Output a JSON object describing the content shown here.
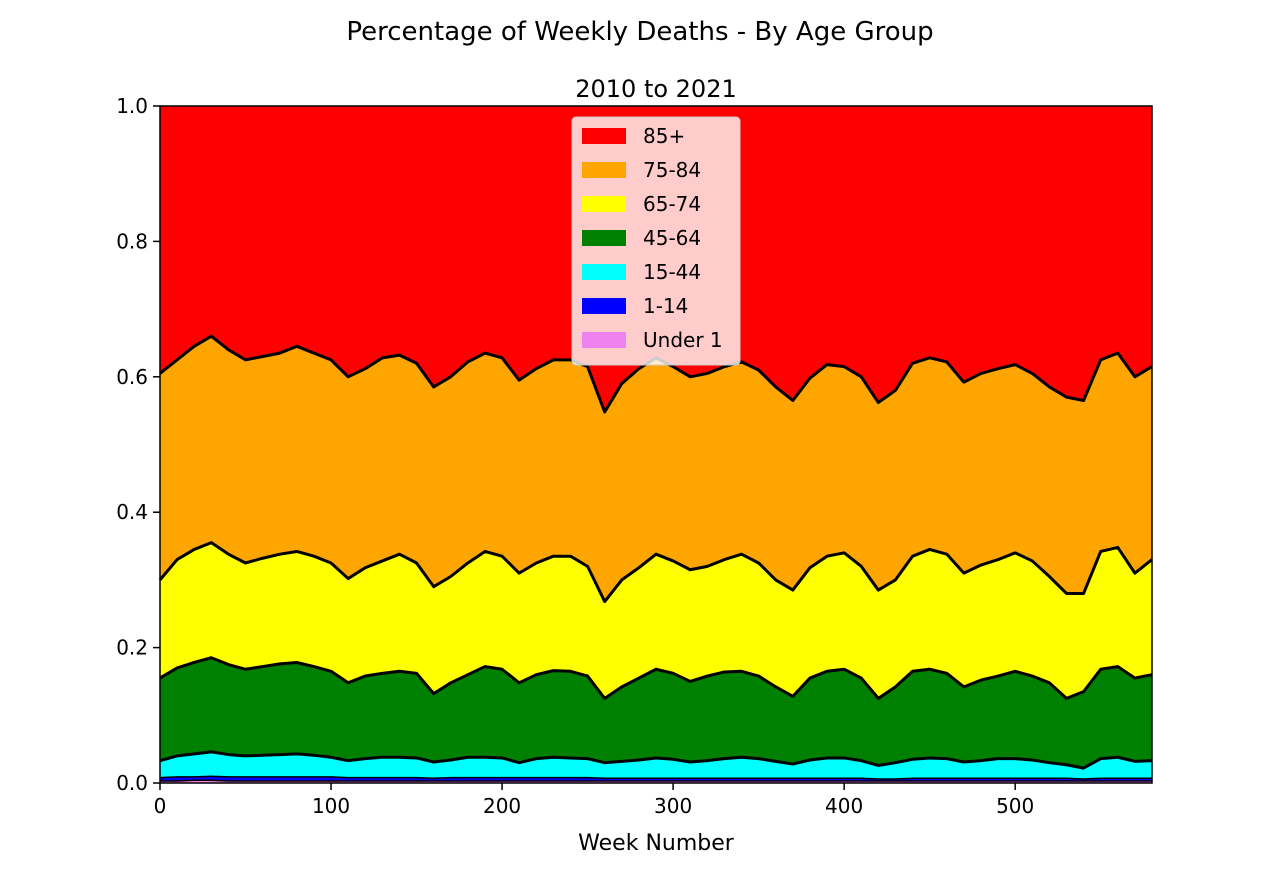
{
  "chart_data": {
    "type": "area",
    "stacked": true,
    "suptitle": "Percentage of Weekly Deaths - By Age Group",
    "title": "2010 to 2021",
    "xlabel": "Week Number",
    "ylabel": "",
    "xlim": [
      0,
      580
    ],
    "ylim": [
      0,
      1
    ],
    "xticks": [
      0,
      100,
      200,
      300,
      400,
      500
    ],
    "xtick_labels": [
      "0",
      "100",
      "200",
      "300",
      "400",
      "500"
    ],
    "yticks": [
      0,
      0.2,
      0.4,
      0.6,
      0.8,
      1.0
    ],
    "ytick_labels": [
      "0.0",
      "0.2",
      "0.4",
      "0.6",
      "0.8",
      "1.0"
    ],
    "grid": false,
    "legend_position": "top-center",
    "x": [
      0,
      10,
      20,
      30,
      40,
      50,
      60,
      70,
      80,
      90,
      100,
      110,
      120,
      130,
      140,
      150,
      160,
      170,
      180,
      190,
      200,
      210,
      220,
      230,
      240,
      250,
      260,
      270,
      280,
      290,
      300,
      310,
      320,
      330,
      340,
      350,
      360,
      370,
      380,
      390,
      400,
      410,
      420,
      430,
      440,
      450,
      460,
      470,
      480,
      490,
      500,
      510,
      520,
      530,
      540,
      550,
      560,
      570,
      580
    ],
    "cumulative_boundaries": [
      {
        "below": "Under 1",
        "values": [
          0.003,
          0.003,
          0.004,
          0.004,
          0.003,
          0.003,
          0.003,
          0.003,
          0.003,
          0.003,
          0.003,
          0.003,
          0.003,
          0.003,
          0.003,
          0.003,
          0.003,
          0.003,
          0.003,
          0.003,
          0.003,
          0.003,
          0.003,
          0.003,
          0.003,
          0.003,
          0.003,
          0.003,
          0.003,
          0.003,
          0.003,
          0.003,
          0.003,
          0.003,
          0.003,
          0.003,
          0.003,
          0.003,
          0.003,
          0.003,
          0.003,
          0.003,
          0.003,
          0.003,
          0.003,
          0.003,
          0.003,
          0.003,
          0.003,
          0.003,
          0.003,
          0.003,
          0.003,
          0.003,
          0.003,
          0.003,
          0.003,
          0.003,
          0.003
        ]
      },
      {
        "below": "1-14",
        "values": [
          0.008,
          0.009,
          0.009,
          0.01,
          0.009,
          0.009,
          0.009,
          0.009,
          0.009,
          0.009,
          0.009,
          0.008,
          0.008,
          0.008,
          0.008,
          0.008,
          0.007,
          0.008,
          0.008,
          0.008,
          0.008,
          0.008,
          0.008,
          0.008,
          0.008,
          0.008,
          0.007,
          0.007,
          0.007,
          0.007,
          0.007,
          0.007,
          0.007,
          0.007,
          0.007,
          0.007,
          0.007,
          0.007,
          0.007,
          0.007,
          0.007,
          0.007,
          0.006,
          0.006,
          0.007,
          0.007,
          0.007,
          0.007,
          0.007,
          0.007,
          0.007,
          0.007,
          0.007,
          0.007,
          0.006,
          0.007,
          0.007,
          0.007,
          0.007
        ]
      },
      {
        "below": "15-44",
        "values": [
          0.033,
          0.04,
          0.043,
          0.046,
          0.042,
          0.04,
          0.041,
          0.042,
          0.043,
          0.041,
          0.038,
          0.033,
          0.036,
          0.038,
          0.038,
          0.037,
          0.031,
          0.034,
          0.038,
          0.038,
          0.037,
          0.03,
          0.036,
          0.038,
          0.037,
          0.036,
          0.03,
          0.032,
          0.034,
          0.037,
          0.035,
          0.031,
          0.033,
          0.036,
          0.038,
          0.036,
          0.032,
          0.028,
          0.034,
          0.037,
          0.037,
          0.033,
          0.026,
          0.03,
          0.035,
          0.037,
          0.036,
          0.031,
          0.033,
          0.036,
          0.036,
          0.034,
          0.03,
          0.027,
          0.022,
          0.036,
          0.038,
          0.032,
          0.033
        ]
      },
      {
        "below": "45-64",
        "values": [
          0.155,
          0.17,
          0.178,
          0.185,
          0.175,
          0.168,
          0.172,
          0.176,
          0.178,
          0.172,
          0.165,
          0.148,
          0.158,
          0.162,
          0.165,
          0.162,
          0.132,
          0.148,
          0.16,
          0.172,
          0.168,
          0.148,
          0.16,
          0.166,
          0.165,
          0.158,
          0.125,
          0.142,
          0.155,
          0.168,
          0.162,
          0.15,
          0.158,
          0.164,
          0.165,
          0.158,
          0.142,
          0.128,
          0.155,
          0.165,
          0.168,
          0.155,
          0.125,
          0.142,
          0.165,
          0.168,
          0.162,
          0.142,
          0.152,
          0.158,
          0.165,
          0.158,
          0.148,
          0.125,
          0.135,
          0.168,
          0.172,
          0.155,
          0.16
        ]
      },
      {
        "below": "65-74",
        "values": [
          0.3,
          0.33,
          0.345,
          0.355,
          0.338,
          0.325,
          0.332,
          0.338,
          0.342,
          0.335,
          0.325,
          0.302,
          0.318,
          0.328,
          0.338,
          0.325,
          0.29,
          0.305,
          0.325,
          0.342,
          0.335,
          0.31,
          0.325,
          0.335,
          0.335,
          0.32,
          0.268,
          0.3,
          0.318,
          0.338,
          0.328,
          0.315,
          0.32,
          0.33,
          0.338,
          0.325,
          0.3,
          0.285,
          0.318,
          0.335,
          0.34,
          0.32,
          0.285,
          0.3,
          0.335,
          0.345,
          0.338,
          0.31,
          0.322,
          0.33,
          0.34,
          0.328,
          0.305,
          0.28,
          0.28,
          0.342,
          0.348,
          0.31,
          0.33
        ]
      },
      {
        "below": "75-84",
        "values": [
          0.605,
          0.625,
          0.645,
          0.66,
          0.64,
          0.625,
          0.63,
          0.635,
          0.645,
          0.635,
          0.625,
          0.6,
          0.612,
          0.628,
          0.632,
          0.62,
          0.585,
          0.6,
          0.622,
          0.635,
          0.628,
          0.595,
          0.612,
          0.625,
          0.625,
          0.615,
          0.548,
          0.59,
          0.612,
          0.628,
          0.615,
          0.6,
          0.605,
          0.615,
          0.622,
          0.61,
          0.585,
          0.565,
          0.598,
          0.618,
          0.615,
          0.6,
          0.562,
          0.58,
          0.62,
          0.628,
          0.622,
          0.592,
          0.605,
          0.612,
          0.618,
          0.605,
          0.585,
          0.57,
          0.565,
          0.625,
          0.635,
          0.6,
          0.615
        ]
      },
      {
        "below": "85+",
        "values": [
          1,
          1,
          1,
          1,
          1,
          1,
          1,
          1,
          1,
          1,
          1,
          1,
          1,
          1,
          1,
          1,
          1,
          1,
          1,
          1,
          1,
          1,
          1,
          1,
          1,
          1,
          1,
          1,
          1,
          1,
          1,
          1,
          1,
          1,
          1,
          1,
          1,
          1,
          1,
          1,
          1,
          1,
          1,
          1,
          1,
          1,
          1,
          1,
          1,
          1,
          1,
          1,
          1,
          1,
          1,
          1,
          1,
          1,
          1
        ]
      }
    ],
    "series": [
      {
        "name": "Under 1",
        "color": "#ee82ee"
      },
      {
        "name": "1-14",
        "color": "#0000ff"
      },
      {
        "name": "15-44",
        "color": "#00ffff"
      },
      {
        "name": "45-64",
        "color": "#008000"
      },
      {
        "name": "65-74",
        "color": "#ffff00"
      },
      {
        "name": "75-84",
        "color": "#ffa500"
      },
      {
        "name": "85+",
        "color": "#ff0000"
      }
    ],
    "legend_order": [
      "85+",
      "75-84",
      "65-74",
      "45-64",
      "15-44",
      "1-14",
      "Under 1"
    ],
    "boundary_line_color": "#000000"
  }
}
